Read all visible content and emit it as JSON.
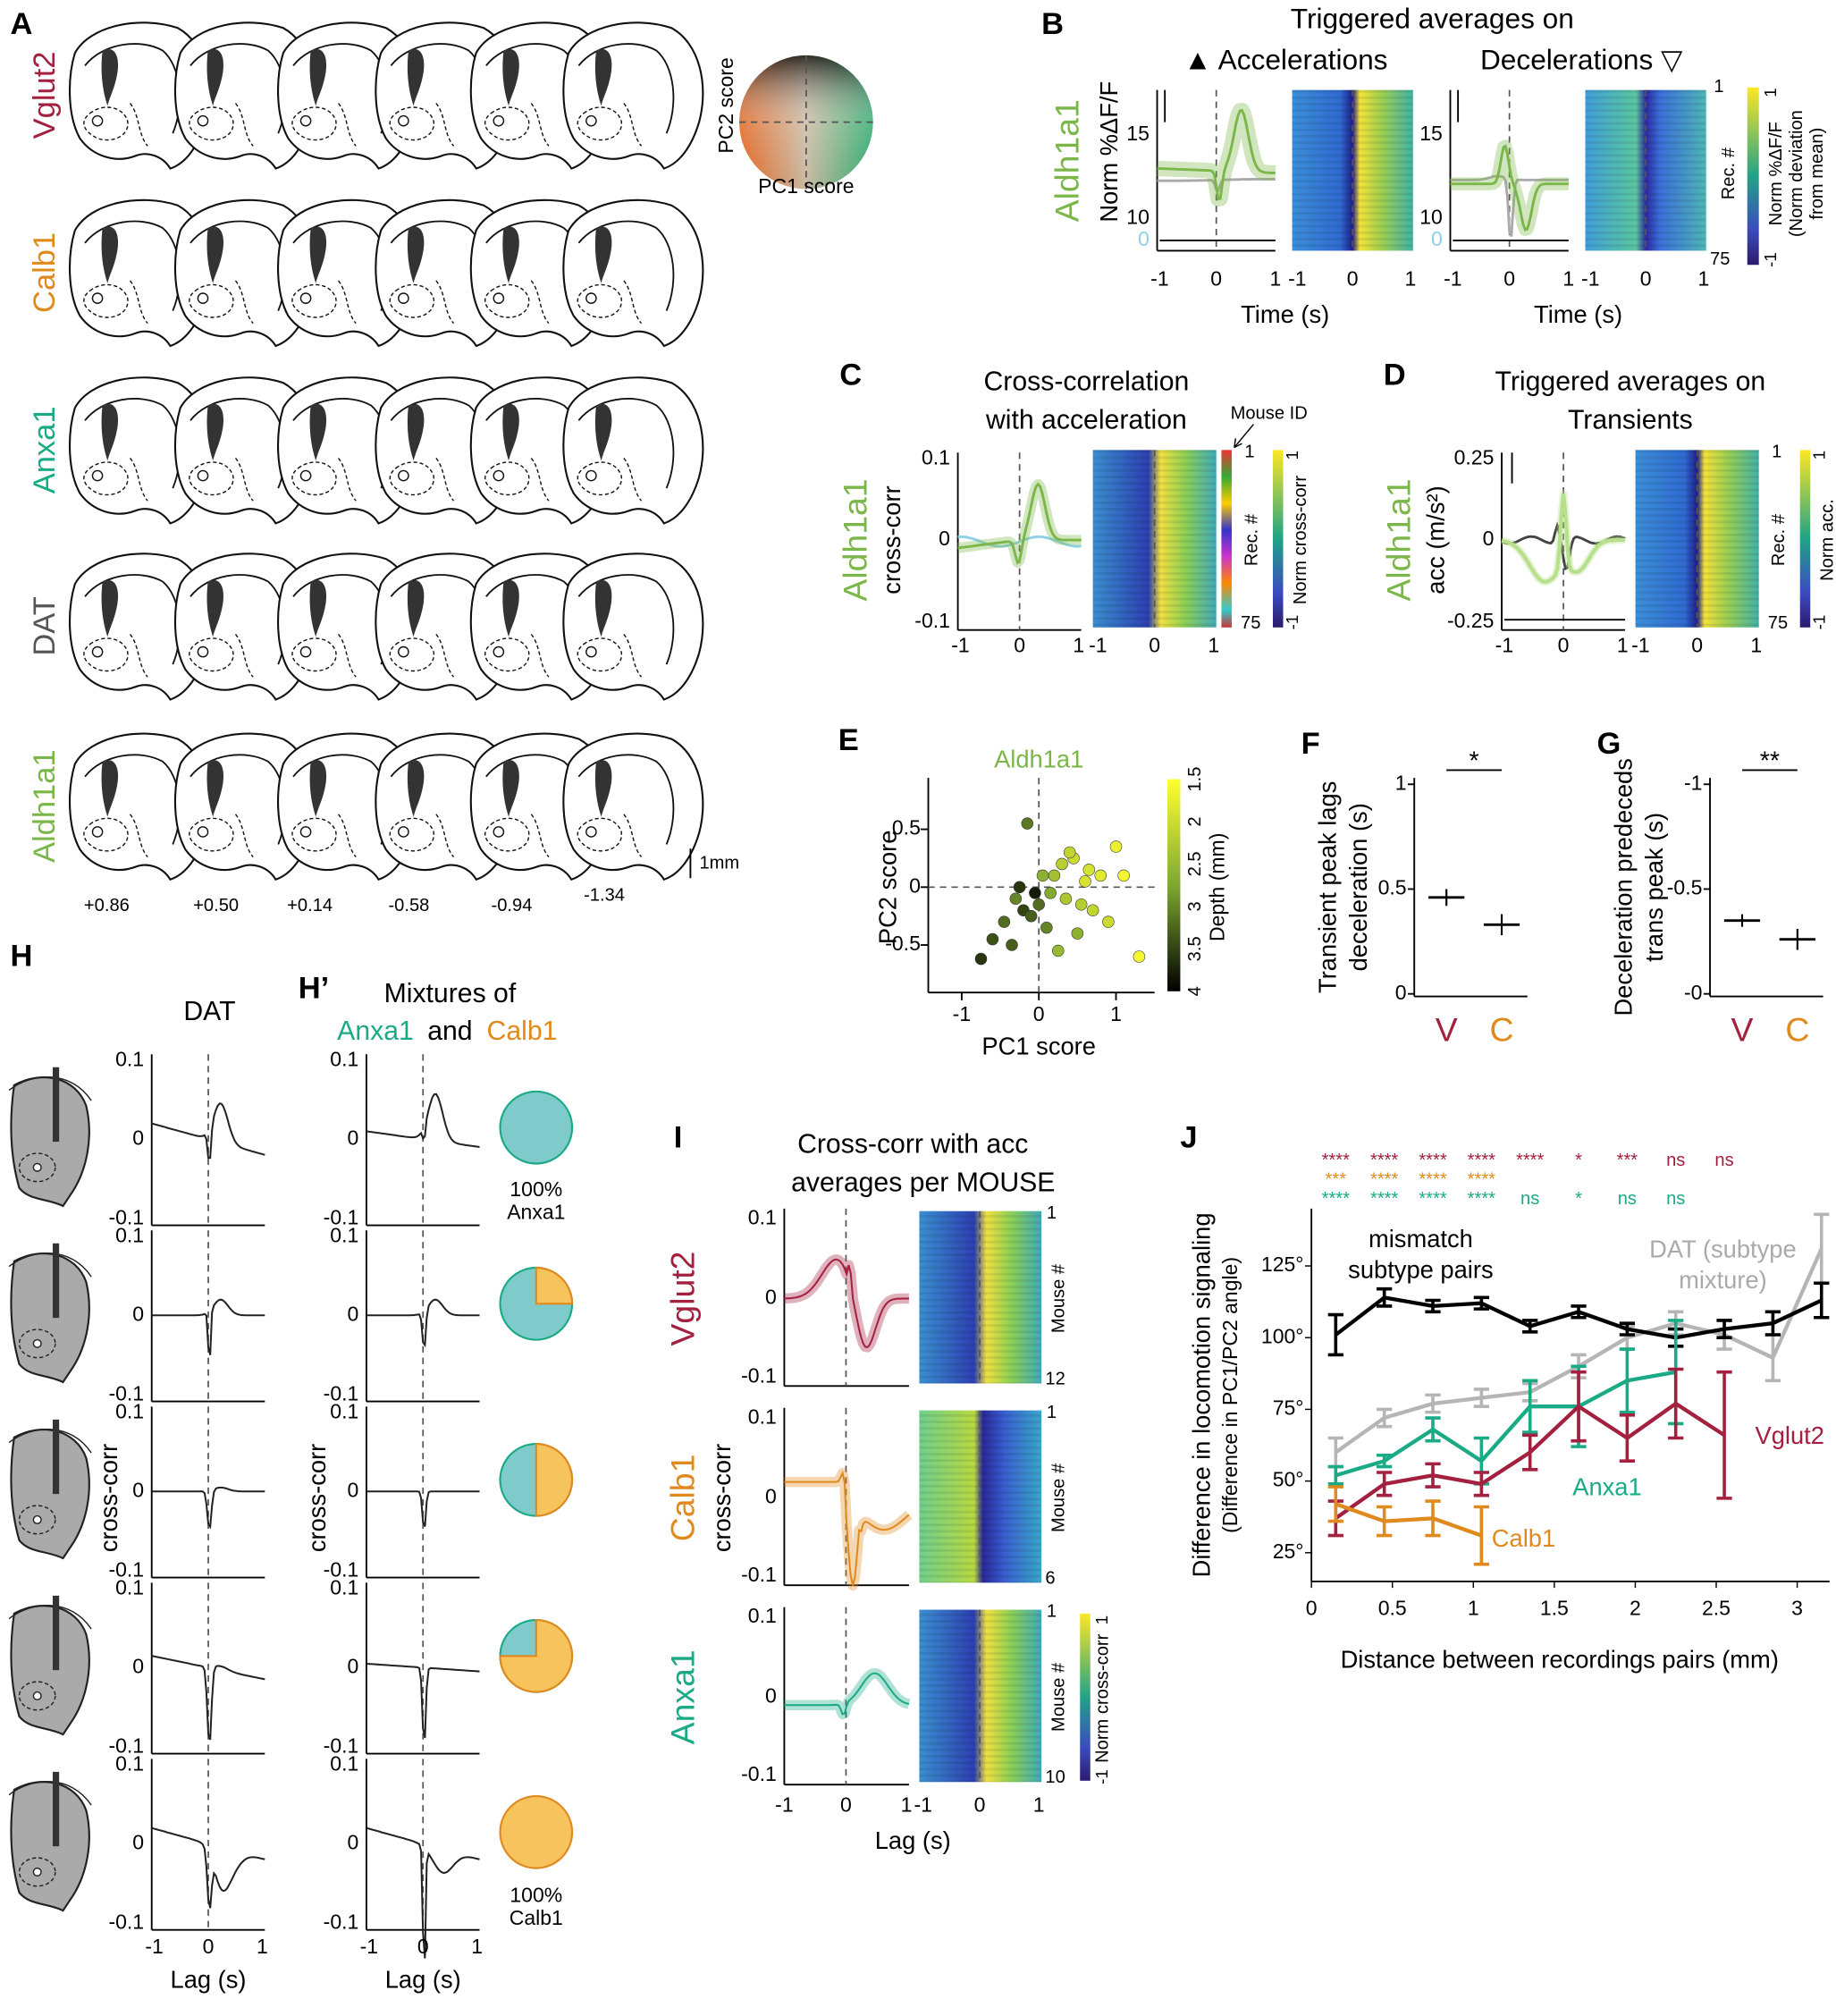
{
  "panels": {
    "A": {
      "label": "A",
      "rows": [
        {
          "name": "Vglut2",
          "color": "#a3203f"
        },
        {
          "name": "Calb1",
          "color": "#e08a1e"
        },
        {
          "name": "Anxa1",
          "color": "#1aaa85"
        },
        {
          "name": "DAT",
          "color": "#555555"
        },
        {
          "name": "Aldh1a1",
          "color": "#7ab648"
        }
      ],
      "coords": [
        "+0.86",
        "+0.50",
        "+0.14",
        "-0.58",
        "-0.94",
        "-1.34"
      ],
      "scale": "1mm",
      "wheel": [
        "PC2 score",
        "PC1 score"
      ]
    },
    "B": {
      "label": "B",
      "title": "Triggered averages on",
      "left": "▲ Accelerations",
      "right": "Decelerations ▽",
      "row": "Aldh1a1",
      "ylabel": "Norm %ΔF/F",
      "yticks": [
        15,
        10,
        0
      ],
      "xticks": [
        -1,
        0,
        1
      ],
      "xlabel": "Time (s)",
      "rec": [
        1,
        75
      ],
      "rec_label": "Rec. #",
      "cbar": [
        1,
        -1
      ],
      "cbar_label": [
        "Norm %ΔF/F",
        "(Norm deviation",
        "from mean)"
      ]
    },
    "C": {
      "label": "C",
      "title": [
        "Cross-correlation",
        "with acceleration"
      ],
      "mouse_id": "Mouse ID",
      "row": "Aldh1a1",
      "ylabel": "cross-corr",
      "yticks": [
        0.1,
        0,
        -0.1
      ],
      "xticks": [
        -1,
        0,
        1
      ],
      "xlabel": "Lag (s)",
      "rec": [
        1,
        75
      ],
      "rec_label": "Rec. #",
      "cbar": [
        1,
        -1
      ],
      "cbar_label": "Norm cross-corr"
    },
    "D": {
      "label": "D",
      "title": [
        "Triggered averages on",
        "Transients"
      ],
      "row": "Aldh1a1",
      "ylabel": "acc (m/s²)",
      "yticks": [
        0.25,
        0,
        -0.25
      ],
      "xticks": [
        -1,
        0,
        1
      ],
      "xlabel": "Time (s)",
      "rec": [
        1,
        75
      ],
      "rec_label": "Rec. #",
      "cbar": [
        1,
        -1
      ],
      "cbar_label": "Norm acc."
    },
    "E": {
      "label": "E",
      "title": "Aldh1a1",
      "ylabel": "PC2 score",
      "xlabel": "PC1 score",
      "yticks": [
        0.5,
        0,
        -0.5
      ],
      "xticks": [
        -1,
        0,
        1
      ],
      "cbar": [
        1.5,
        2,
        2.5,
        3,
        3.5,
        4
      ],
      "cbar_label": "Depth (mm)",
      "x": [
        -0.75,
        -0.6,
        -0.45,
        -0.35,
        -0.3,
        -0.2,
        -0.15,
        -0.05,
        0,
        0.05,
        0.1,
        0.2,
        0.25,
        0.3,
        0.35,
        0.45,
        0.5,
        0.6,
        0.7,
        0.8,
        0.9,
        1.0,
        1.1,
        1.3,
        -0.1,
        0.15,
        0.4,
        -0.25,
        0.55,
        0.65
      ],
      "y": [
        -0.62,
        -0.45,
        -0.3,
        -0.5,
        -0.1,
        -0.2,
        0.55,
        -0.05,
        -0.15,
        0.1,
        -0.35,
        0.1,
        -0.55,
        0.2,
        -0.1,
        0.25,
        -0.4,
        0.05,
        -0.2,
        0.1,
        -0.3,
        0.35,
        0.1,
        -0.6,
        -0.25,
        -0.05,
        0.3,
        0.0,
        -0.15,
        0.15
      ],
      "depth": [
        3.6,
        3.4,
        3.2,
        3.3,
        3.0,
        3.5,
        3.1,
        3.8,
        3.2,
        2.6,
        3.0,
        2.4,
        2.5,
        2.2,
        2.3,
        2.0,
        2.6,
        1.9,
        2.1,
        1.8,
        2.0,
        1.7,
        1.6,
        1.6,
        3.3,
        2.7,
        2.1,
        3.6,
        2.2,
        1.9
      ]
    },
    "F": {
      "label": "F",
      "ylabel": [
        "Transient peak lags",
        "deceleration (s)"
      ],
      "yticks": [
        1,
        0.5,
        0
      ],
      "groups": [
        {
          "name": "V",
          "color": "#a3203f"
        },
        {
          "name": "C",
          "color": "#e08a1e"
        }
      ],
      "values": [
        0.46,
        0.33
      ],
      "errors": [
        0.04,
        0.05
      ],
      "sig": "*"
    },
    "G": {
      "label": "G",
      "ylabel": [
        "Deceleration predeceds",
        "trans peak (s)"
      ],
      "yticks": [
        -1,
        -0.5,
        {
          "value": 0,
          "label": "-0"
        }
      ],
      "groups": [
        {
          "name": "V",
          "color": "#a3203f"
        },
        {
          "name": "C",
          "color": "#e08a1e"
        }
      ],
      "values": [
        -0.35,
        -0.26
      ],
      "errors": [
        0.03,
        0.05
      ],
      "sig": "**"
    },
    "H": {
      "label": "H",
      "title": "DAT",
      "ylabel": "cross-corr",
      "yticks": [
        0.1,
        0,
        -0.1
      ],
      "xticks": [
        -1,
        0,
        1
      ],
      "xlabel": "Lag (s)"
    },
    "Hp": {
      "label": "H’",
      "title": "Mixtures of",
      "a": "Anxa1",
      "and": "and",
      "b": "Calb1",
      "top": [
        "100%",
        "Anxa1"
      ],
      "bottom": [
        "100%",
        "Calb1"
      ],
      "yticks": [
        0.1,
        0,
        -0.1
      ],
      "xticks": [
        -1,
        0,
        1
      ],
      "ylabel": "cross-corr",
      "xlabel": "Lag (s)"
    },
    "I": {
      "label": "I",
      "title": [
        "Cross-corr with acc",
        "averages per MOUSE"
      ],
      "rows": [
        {
          "name": "Vglut2",
          "color": "#a3203f",
          "n": 12
        },
        {
          "name": "Calb1",
          "color": "#e08a1e",
          "n": 6
        },
        {
          "name": "Anxa1",
          "color": "#1aaa85",
          "n": 10
        }
      ],
      "ylabel": "cross-corr",
      "yticks": [
        0.1,
        0,
        -0.1
      ],
      "xticks": [
        -1,
        0,
        1
      ],
      "xlabel": "Lag (s)",
      "first": 1,
      "mouse_label": "Mouse #",
      "cbar": [
        1,
        -1
      ],
      "cbar_label": "Norm cross-corr"
    }
  },
  "chart_data": {
    "type": "line",
    "label": "J",
    "ylabel": [
      "Difference in locomotion signaling",
      "(Difference in PC1/PC2 angle)"
    ],
    "xlabel": "Distance between recordings pairs (mm)",
    "xlim": [
      0,
      3.2
    ],
    "ylim": [
      15,
      145
    ],
    "xticks": [
      0,
      0.5,
      1,
      1.5,
      2,
      2.5,
      3
    ],
    "yticks": [
      {
        "value": 25,
        "label": "25°"
      },
      {
        "value": 50,
        "label": "50°"
      },
      {
        "value": 75,
        "label": "75°"
      },
      {
        "value": 100,
        "label": "100°"
      },
      {
        "value": 125,
        "label": "125°"
      }
    ],
    "x": [
      0.15,
      0.45,
      0.75,
      1.05,
      1.35,
      1.65,
      1.95,
      2.25,
      2.55,
      2.85,
      3.15
    ],
    "series": [
      {
        "color": "#b5b5b5",
        "values": [
          60,
          72,
          77,
          79,
          81,
          90,
          100,
          105,
          101,
          93,
          131
        ],
        "errors": [
          5,
          3,
          3,
          3,
          3,
          4,
          4,
          4,
          5,
          8,
          12
        ]
      },
      {
        "color": "#000000",
        "values": [
          101,
          114,
          111,
          112,
          104,
          109,
          103,
          100,
          103,
          105,
          113
        ],
        "errors": [
          7,
          3,
          2,
          2,
          2,
          2,
          2,
          3,
          3,
          4,
          6
        ]
      },
      {
        "color": "#1aaa85",
        "values": [
          52,
          57,
          68,
          57,
          76,
          76,
          85,
          88,
          null,
          null,
          null
        ],
        "errors": [
          3,
          2,
          4,
          8,
          9,
          14,
          11,
          18,
          null,
          null,
          null
        ]
      },
      {
        "color": "#a3203f",
        "values": [
          37,
          49,
          52,
          49,
          60,
          76,
          65,
          77,
          66,
          null,
          null
        ],
        "errors": [
          6,
          4,
          4,
          4,
          6,
          12,
          8,
          12,
          22,
          null,
          null
        ]
      },
      {
        "color": "#e08a1e",
        "values": [
          42,
          36,
          37,
          31,
          null,
          null,
          null,
          null,
          null,
          null,
          null
        ],
        "errors": [
          6,
          5,
          6,
          10,
          null,
          null,
          null,
          null,
          null,
          null,
          null
        ]
      }
    ],
    "annotations": [
      {
        "text": [
          "mismatch",
          "subtype pairs"
        ],
        "color": "#000000"
      },
      {
        "text": [
          "DAT (subtype",
          "mixture)"
        ],
        "color": "#aaaaaa"
      },
      {
        "text": [
          "Anxa1"
        ],
        "color": "#1aaa85"
      },
      {
        "text": [
          "Vglut2"
        ],
        "color": "#a3203f"
      },
      {
        "text": [
          "Calb1"
        ],
        "color": "#e08a1e"
      }
    ],
    "significance": [
      {
        "color": "#a3203f",
        "labels": [
          "****",
          "****",
          "****",
          "****",
          "****",
          "*",
          "***",
          "ns",
          "ns"
        ]
      },
      {
        "color": "#e08a1e",
        "labels": [
          "***",
          "****",
          "****",
          "****"
        ]
      },
      {
        "color": "#1aaa85",
        "labels": [
          "****",
          "****",
          "****",
          "****",
          "ns",
          "*",
          "ns",
          "ns"
        ]
      }
    ]
  }
}
